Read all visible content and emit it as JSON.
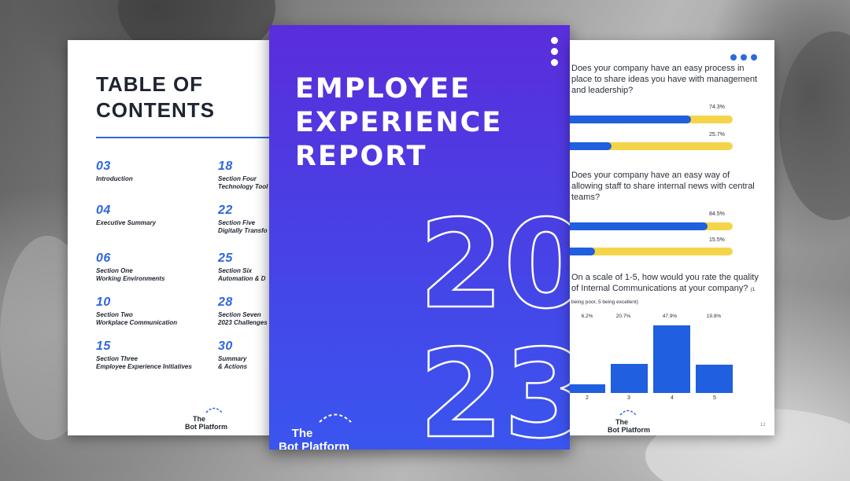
{
  "toc": {
    "title_line1": "TABLE OF",
    "title_line2": "CONTENTS",
    "left_items": [
      {
        "num": "03",
        "text": "Introduction"
      },
      {
        "num": "04",
        "text": "Executive Summary"
      },
      {
        "num": "06",
        "text": "Section One\nWorking Environments"
      },
      {
        "num": "10",
        "text": "Section Two\nWorkplace Communication"
      },
      {
        "num": "15",
        "text": "Section Three\nEmployee Experience Initiatives"
      }
    ],
    "right_items": [
      {
        "num": "18",
        "text": "Section Four\nTechnology Tool"
      },
      {
        "num": "22",
        "text": "Section Five\nDigitally Transfo"
      },
      {
        "num": "25",
        "text": "Section Six\nAutomation & D"
      },
      {
        "num": "28",
        "text": "Section Seven\n2023 Challenges"
      },
      {
        "num": "30",
        "text": "Summary\n& Actions"
      }
    ],
    "logo": "The\nBot Platform"
  },
  "cover": {
    "title_line1": "EMPLOYEE",
    "title_line2": "EXPERIENCE",
    "title_line3": "REPORT",
    "year_top": "20",
    "year_bottom": "23",
    "brand": "The\nBot Platform"
  },
  "results": {
    "q1": "Does your company have an easy process in place to share ideas you have with management and leadership?",
    "q1_bars": [
      {
        "pct_label": "74.3%",
        "value": 74.3
      },
      {
        "pct_label": "25.7%",
        "value": 25.7
      }
    ],
    "q2": "Does your company have an easy way of allowing staff to share internal news with central teams?",
    "q2_bars": [
      {
        "pct_label": "84.5%",
        "value": 84.5
      },
      {
        "pct_label": "15.5%",
        "value": 15.5
      }
    ],
    "q3": "On a scale of 1-5, how would you rate the quality of Internal Communications at your company?",
    "q3_note": "(1 being poor, 5 being excellent)",
    "q3_columns": [
      {
        "cat": "2",
        "pct_label": "6.2%",
        "value": 6.2
      },
      {
        "cat": "3",
        "pct_label": "20.7%",
        "value": 20.7
      },
      {
        "cat": "4",
        "pct_label": "47.9%",
        "value": 47.9
      },
      {
        "cat": "5",
        "pct_label": "19.8%",
        "value": 19.8
      }
    ],
    "logo": "The\nBot Platform",
    "page_number": "12"
  },
  "colors": {
    "accent_blue": "#2f66e0",
    "bar_blue": "#1f5fe0",
    "bar_yellow": "#f4d54a",
    "cover_purple": "#5a2ddb",
    "cover_blue": "#3a55ef"
  }
}
